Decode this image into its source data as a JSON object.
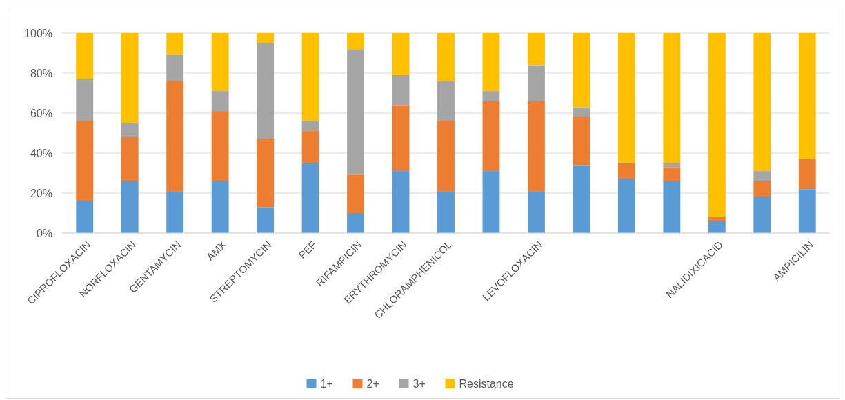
{
  "chart_data": {
    "type": "bar",
    "stacked": true,
    "categories": [
      "CIPROFLOXACIN",
      "NORFLOXACIN",
      "GENTAMYCIN",
      "AMX",
      "STREPTOMYCIN",
      "PEF",
      "RIFAMPICIN",
      "ERYTHROMYCIN",
      "CHLORAMPHENICOL",
      null,
      "LEVOFLOXACIN",
      null,
      null,
      null,
      "NALIDIXICACID",
      null,
      "AMPICILIN"
    ],
    "series": [
      {
        "name": "1+",
        "color": "#5b9bd5",
        "values": [
          16,
          26,
          21,
          26,
          13,
          35,
          10,
          31,
          21,
          31,
          21,
          34,
          27,
          26,
          6,
          18,
          22
        ]
      },
      {
        "name": "2+",
        "color": "#ed7d31",
        "values": [
          40,
          22,
          55,
          35,
          34,
          16,
          19,
          33,
          35,
          35,
          45,
          24,
          8,
          7,
          2,
          8,
          15
        ]
      },
      {
        "name": "3+",
        "color": "#a5a5a5",
        "values": [
          21,
          7,
          13,
          10,
          48,
          5,
          63,
          15,
          20,
          5,
          18,
          5,
          0,
          2,
          0,
          5,
          0
        ]
      },
      {
        "name": "Resistance",
        "color": "#ffc000",
        "values": [
          23,
          45,
          11,
          29,
          5,
          44,
          8,
          21,
          24,
          29,
          16,
          37,
          65,
          65,
          92,
          69,
          63
        ]
      }
    ],
    "ylim": [
      0,
      100
    ],
    "yticks": [
      {
        "value": 0,
        "label": "0%"
      },
      {
        "value": 20,
        "label": "20%"
      },
      {
        "value": 40,
        "label": "40%"
      },
      {
        "value": 60,
        "label": "60%"
      },
      {
        "value": 80,
        "label": "80%"
      },
      {
        "value": 100,
        "label": "100%"
      }
    ],
    "grid": "y",
    "legend": "bottom"
  }
}
